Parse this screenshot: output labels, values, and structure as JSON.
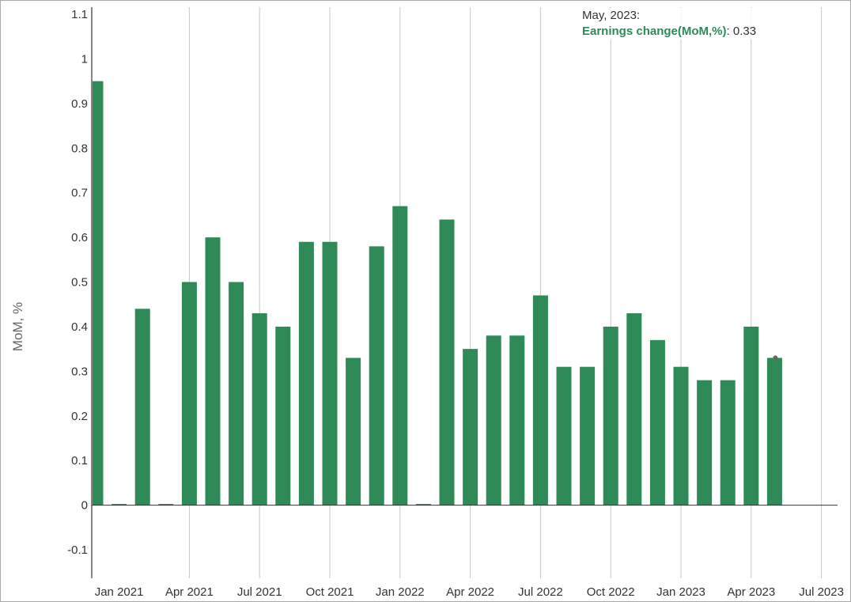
{
  "chart_data": {
    "type": "bar",
    "ylabel": "MoM, %",
    "ylim": [
      -0.1,
      1.1
    ],
    "yticks": [
      1.1,
      1,
      0.9,
      0.8,
      0.7,
      0.6,
      0.5,
      0.4,
      0.3,
      0.2,
      0.1,
      0,
      -0.1
    ],
    "xtick_labels": [
      "Jan 2021",
      "Apr 2021",
      "Jul 2021",
      "Oct 2021",
      "Jan 2022",
      "Apr 2022",
      "Jul 2022",
      "Oct 2022",
      "Jan 2023",
      "Apr 2023",
      "Jul 2023"
    ],
    "color": "#2e8b57",
    "series": [
      {
        "name": "Earnings change(MoM,%)",
        "points": [
          {
            "x": "Dec 2020",
            "y": 0.95
          },
          {
            "x": "Jan 2021",
            "y": 0.0
          },
          {
            "x": "Feb 2021",
            "y": 0.44
          },
          {
            "x": "Mar 2021",
            "y": 0.0
          },
          {
            "x": "Apr 2021",
            "y": 0.5
          },
          {
            "x": "May 2021",
            "y": 0.6
          },
          {
            "x": "Jun 2021",
            "y": 0.5
          },
          {
            "x": "Jul 2021",
            "y": 0.43
          },
          {
            "x": "Aug 2021",
            "y": 0.4
          },
          {
            "x": "Sep 2021",
            "y": 0.59
          },
          {
            "x": "Oct 2021",
            "y": 0.59
          },
          {
            "x": "Nov 2021",
            "y": 0.33
          },
          {
            "x": "Dec 2021",
            "y": 0.58
          },
          {
            "x": "Jan 2022",
            "y": 0.67
          },
          {
            "x": "Feb 2022",
            "y": 0.0
          },
          {
            "x": "Mar 2022",
            "y": 0.64
          },
          {
            "x": "Apr 2022",
            "y": 0.35
          },
          {
            "x": "May 2022",
            "y": 0.38
          },
          {
            "x": "Jun 2022",
            "y": 0.38
          },
          {
            "x": "Jul 2022",
            "y": 0.47
          },
          {
            "x": "Aug 2022",
            "y": 0.31
          },
          {
            "x": "Sep 2022",
            "y": 0.31
          },
          {
            "x": "Oct 2022",
            "y": 0.4
          },
          {
            "x": "Nov 2022",
            "y": 0.43
          },
          {
            "x": "Dec 2022",
            "y": 0.37
          },
          {
            "x": "Jan 2023",
            "y": 0.31
          },
          {
            "x": "Feb 2023",
            "y": 0.28
          },
          {
            "x": "Mar 2023",
            "y": 0.28
          },
          {
            "x": "Apr 2023",
            "y": 0.4
          },
          {
            "x": "May 2023",
            "y": 0.33
          }
        ]
      }
    ],
    "tooltip": {
      "date": "May, 2023:",
      "series_name": "Earnings change(MoM,%)",
      "value": ": 0.33"
    }
  }
}
